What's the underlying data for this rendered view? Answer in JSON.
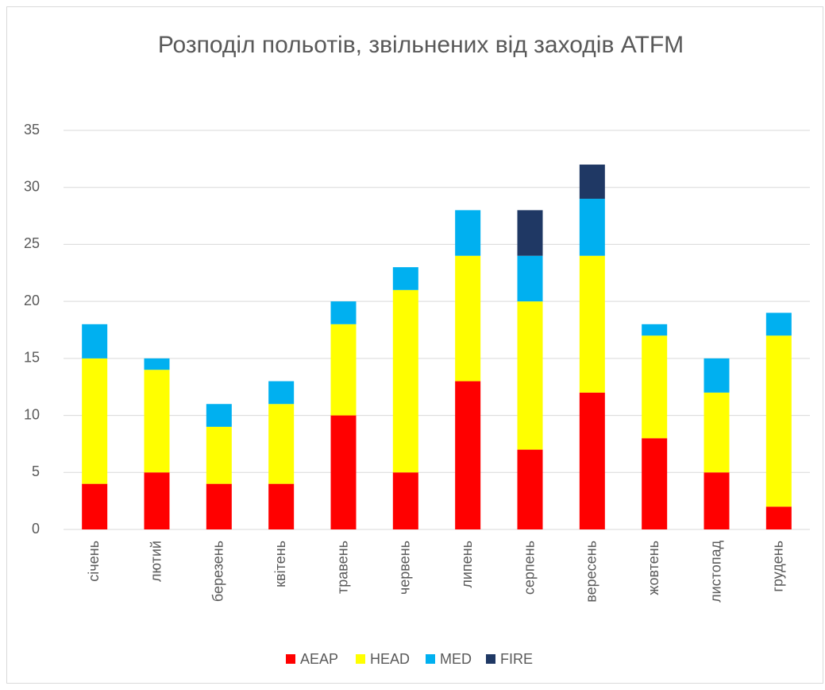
{
  "chart_data": {
    "type": "stacked_bar",
    "title": "Розподіл польотів, звільнених від заходів ATFM",
    "categories": [
      "січень",
      "лютий",
      "березень",
      "квітень",
      "травень",
      "червень",
      "липень",
      "серпень",
      "вересень",
      "жовтень",
      "листопад",
      "грудень"
    ],
    "series": [
      {
        "name": "AEAP",
        "color": "#ff0000",
        "values": [
          4,
          5,
          4,
          4,
          10,
          5,
          13,
          7,
          12,
          8,
          5,
          2
        ]
      },
      {
        "name": "HEAD",
        "color": "#ffff00",
        "values": [
          11,
          9,
          5,
          7,
          8,
          16,
          11,
          13,
          12,
          9,
          7,
          15
        ]
      },
      {
        "name": "MED",
        "color": "#00b0f0",
        "values": [
          3,
          1,
          2,
          2,
          2,
          2,
          4,
          4,
          5,
          1,
          3,
          2
        ]
      },
      {
        "name": "FIRE",
        "color": "#1f3864",
        "values": [
          0,
          0,
          0,
          0,
          0,
          0,
          0,
          4,
          3,
          0,
          0,
          0
        ]
      }
    ],
    "ylim": [
      0,
      35
    ],
    "yticks": [
      0,
      5,
      10,
      15,
      20,
      25,
      30,
      35
    ],
    "grid": true,
    "legend": "bottom"
  }
}
